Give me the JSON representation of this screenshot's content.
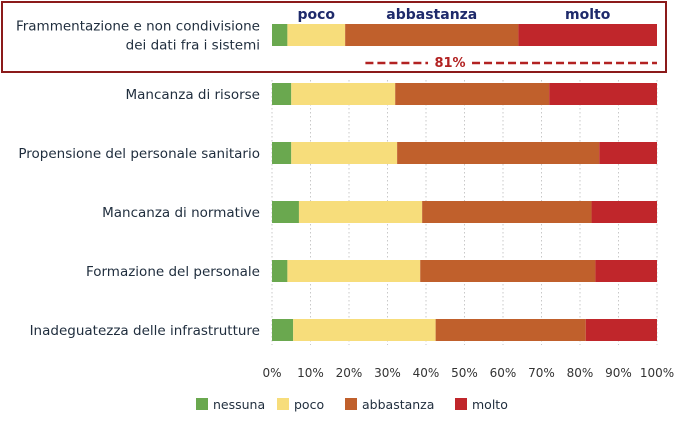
{
  "chart_data": {
    "type": "bar",
    "orientation": "horizontal",
    "stacked": true,
    "categories": [
      "Frammentazione e non condivisione dei dati fra i sistemi",
      "Mancanza di risorse",
      "Propensione del personale sanitario",
      "Mancanza di normative",
      "Formazione del personale",
      "Inadeguatezza delle infrastrutture"
    ],
    "category_lines": [
      [
        "Frammentazione e non condivisione",
        "dei dati fra i sistemi"
      ],
      [
        "Mancanza di risorse"
      ],
      [
        "Propensione del personale sanitario"
      ],
      [
        "Mancanza di normative"
      ],
      [
        "Formazione del personale"
      ],
      [
        "Inadeguatezza delle infrastrutture"
      ]
    ],
    "series": [
      {
        "name": "nessuna",
        "color": "#6aa84f",
        "values": [
          4,
          5,
          5,
          7,
          4,
          5.5
        ]
      },
      {
        "name": "poco",
        "color": "#f7dd7b",
        "values": [
          15,
          27,
          27.5,
          32,
          34.5,
          37
        ]
      },
      {
        "name": "abbastanza",
        "color": "#c0602c",
        "values": [
          45,
          40,
          52.5,
          44,
          45.5,
          39
        ]
      },
      {
        "name": "molto",
        "color": "#c0262b",
        "values": [
          36,
          28,
          15,
          17,
          16,
          18.5
        ]
      }
    ],
    "xlim": [
      0,
      100
    ],
    "x_ticks": [
      "0%",
      "10%",
      "20%",
      "30%",
      "40%",
      "50%",
      "60%",
      "70%",
      "80%",
      "90%",
      "100%"
    ],
    "grid": "vertical dotted",
    "legend_position": "bottom",
    "highlight": {
      "category": "Frammentazione e non condivisione dei dati fra i sistemi",
      "top_labels": [
        "poco",
        "abbastanza",
        "molto"
      ],
      "annotation": "81%",
      "annotation_color": "#b22222"
    }
  }
}
